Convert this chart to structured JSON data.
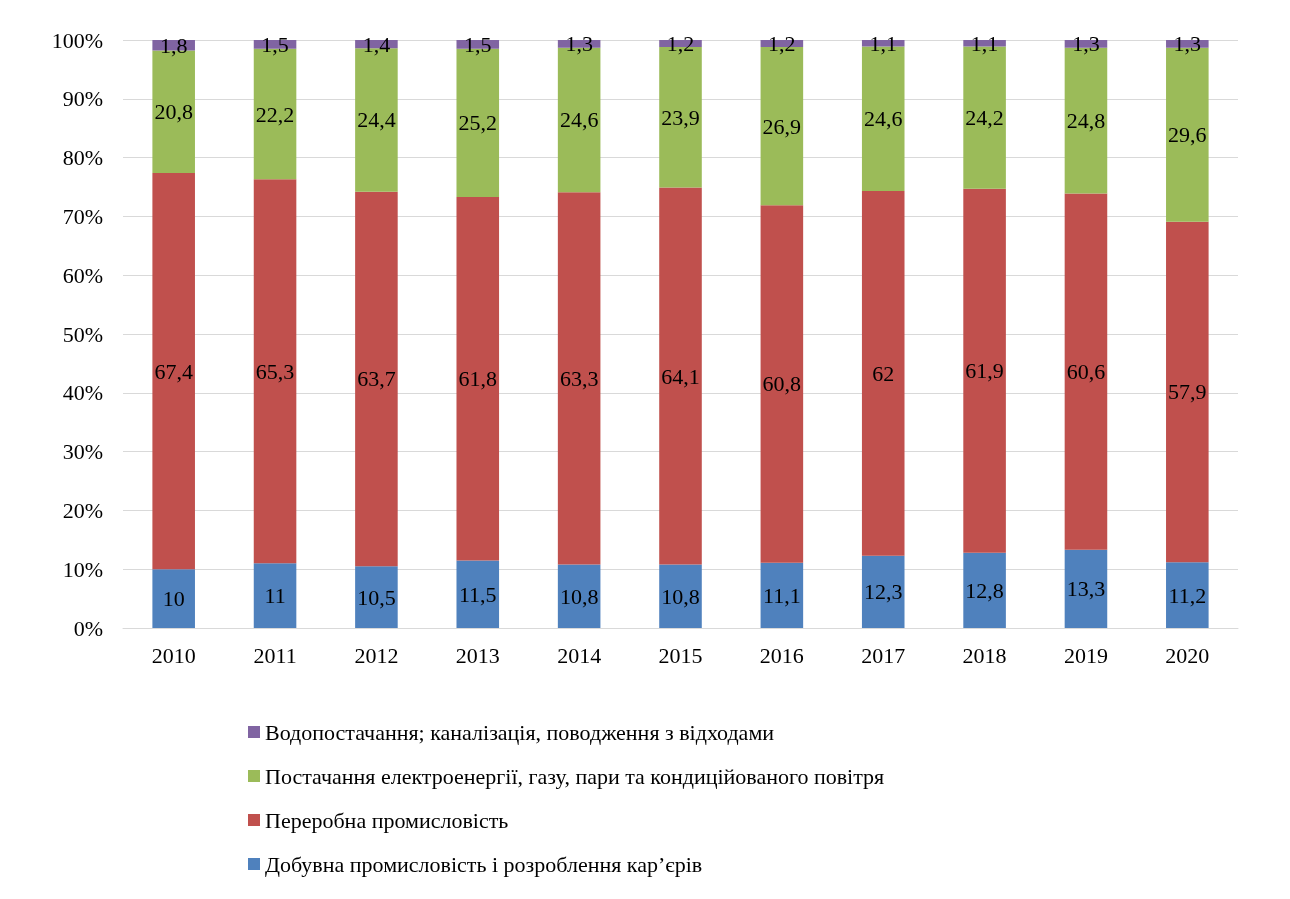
{
  "chart_data": {
    "type": "bar",
    "stacked": true,
    "categories": [
      "2010",
      "2011",
      "2012",
      "2013",
      "2014",
      "2015",
      "2016",
      "2017",
      "2018",
      "2019",
      "2020"
    ],
    "series": [
      {
        "name": "Добувна промисловість і розроблення кар’єрів",
        "color": "#4f81bd",
        "values": [
          10,
          11,
          10.5,
          11.5,
          10.8,
          10.8,
          11.1,
          12.3,
          12.8,
          13.3,
          11.2
        ],
        "value_labels": [
          "10",
          "11",
          "10,5",
          "11,5",
          "10,8",
          "10,8",
          "11,1",
          "12,3",
          "12,8",
          "13,3",
          "11,2"
        ]
      },
      {
        "name": "Переробна промисловість",
        "color": "#c0504d",
        "values": [
          67.4,
          65.3,
          63.7,
          61.8,
          63.3,
          64.1,
          60.8,
          62,
          61.9,
          60.6,
          57.9
        ],
        "value_labels": [
          "67,4",
          "65,3",
          "63,7",
          "61,8",
          "63,3",
          "64,1",
          "60,8",
          "62",
          "61,9",
          "60,6",
          "57,9"
        ]
      },
      {
        "name": "Постачання електроенергії, газу, пари та кондиційованого повітря",
        "color": "#9bbb59",
        "values": [
          20.8,
          22.2,
          24.4,
          25.2,
          24.6,
          23.9,
          26.9,
          24.6,
          24.2,
          24.8,
          29.6
        ],
        "value_labels": [
          "20,8",
          "22,2",
          "24,4",
          "25,2",
          "24,6",
          "23,9",
          "26,9",
          "24,6",
          "24,2",
          "24,8",
          "29,6"
        ]
      },
      {
        "name": "Водопостачання; каналізація, поводження з відходами",
        "color": "#8064a2",
        "values": [
          1.8,
          1.5,
          1.4,
          1.5,
          1.3,
          1.2,
          1.2,
          1.1,
          1.1,
          1.3,
          1.3
        ],
        "value_labels": [
          "1,8",
          "1,5",
          "1,4",
          "1,5",
          "1,3",
          "1,2",
          "1,2",
          "1,1",
          "1,1",
          "1,3",
          "1,3"
        ]
      }
    ],
    "ylim": [
      0,
      100
    ],
    "yticks": [
      {
        "value": 0,
        "label": "0%"
      },
      {
        "value": 10,
        "label": "10%"
      },
      {
        "value": 20,
        "label": "20%"
      },
      {
        "value": 30,
        "label": "30%"
      },
      {
        "value": 40,
        "label": "40%"
      },
      {
        "value": 50,
        "label": "50%"
      },
      {
        "value": 60,
        "label": "60%"
      },
      {
        "value": 70,
        "label": "70%"
      },
      {
        "value": 80,
        "label": "80%"
      },
      {
        "value": 90,
        "label": "90%"
      },
      {
        "value": 100,
        "label": "100%"
      }
    ],
    "grid": "y",
    "legend": "bottom"
  }
}
